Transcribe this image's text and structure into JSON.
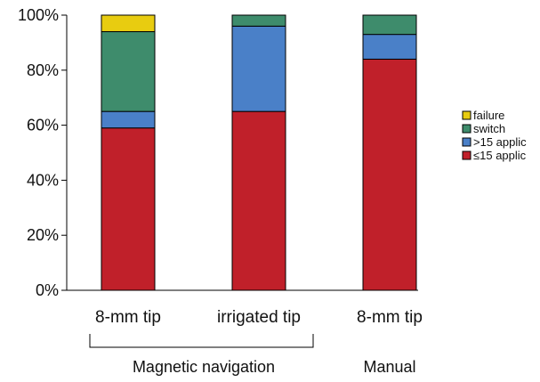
{
  "chart_data": {
    "type": "bar",
    "stacked": true,
    "categories": [
      "8-mm tip",
      "irrigated tip",
      "8-mm tip"
    ],
    "groups": [
      {
        "label": "Magnetic navigation",
        "categories": [
          0,
          1
        ]
      },
      {
        "label": "Manual",
        "categories": [
          2
        ]
      }
    ],
    "series": [
      {
        "name": "≤15 applic",
        "color": "#c0202a",
        "values": [
          59,
          65,
          84
        ]
      },
      {
        "name": ">15 applic",
        "color": "#4a80c8",
        "values": [
          6,
          31,
          9
        ]
      },
      {
        "name": "switch",
        "color": "#3e8c6c",
        "values": [
          29,
          4,
          7
        ]
      },
      {
        "name": "failure",
        "color": "#e8cc10",
        "values": [
          6,
          0,
          0
        ]
      }
    ],
    "y_ticks": [
      "0%",
      "20%",
      "40%",
      "60%",
      "80%",
      "100%"
    ],
    "ylim": [
      0,
      100
    ],
    "legend_position": "right",
    "grid": false
  }
}
